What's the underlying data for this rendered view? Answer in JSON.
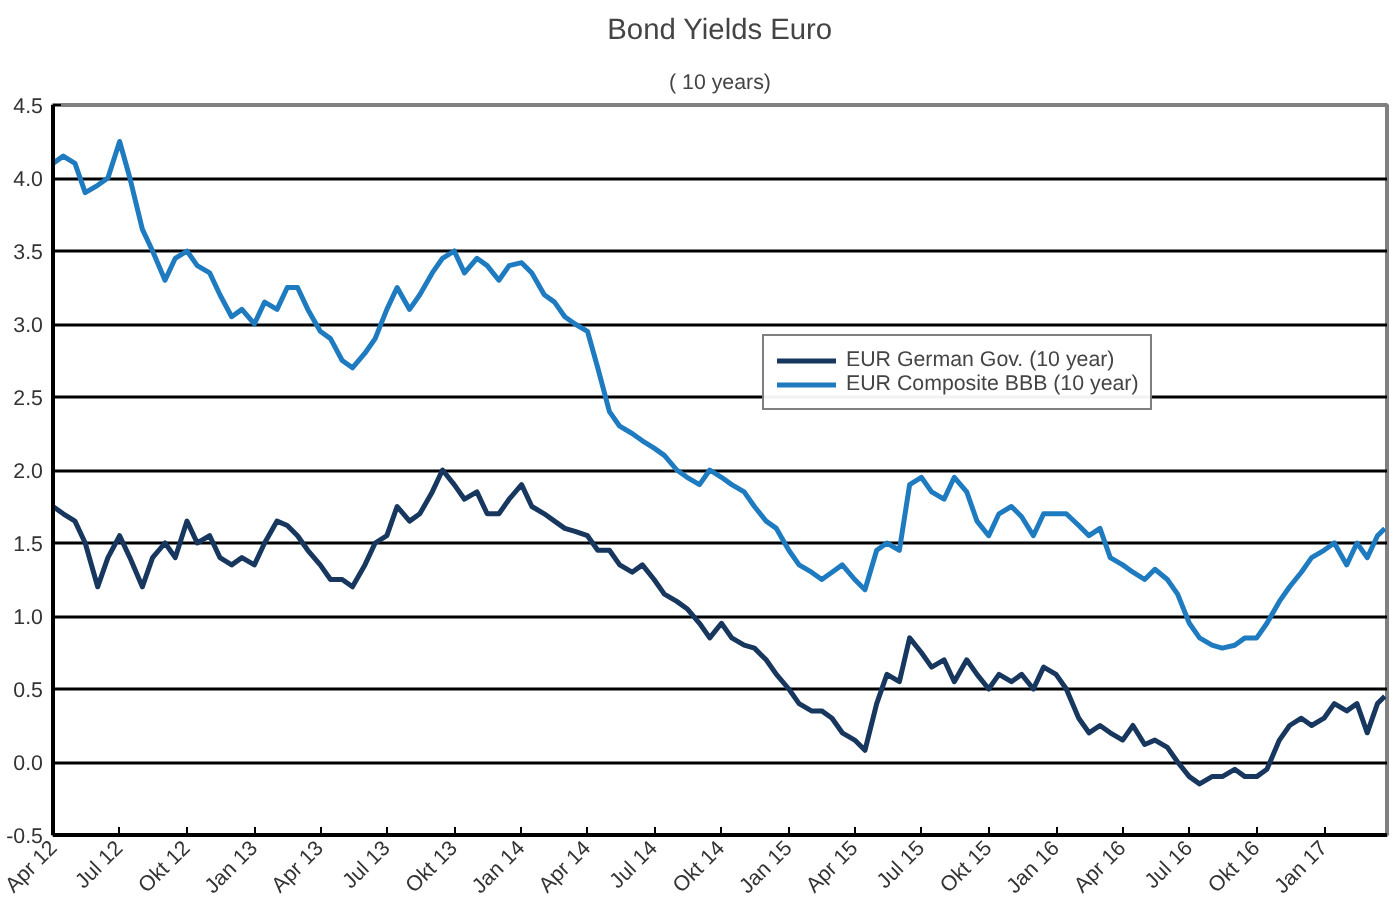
{
  "chart_data": {
    "type": "line",
    "title": "Bond Yields Euro",
    "subtitle": "( 10 years)",
    "x": [
      "2012-04-01",
      "2012-04-15",
      "2012-05-01",
      "2012-05-15",
      "2012-06-01",
      "2012-06-15",
      "2012-07-01",
      "2012-07-15",
      "2012-08-01",
      "2012-08-15",
      "2012-09-01",
      "2012-09-15",
      "2012-10-01",
      "2012-10-15",
      "2012-11-01",
      "2012-11-15",
      "2012-12-01",
      "2012-12-15",
      "2013-01-01",
      "2013-01-15",
      "2013-02-01",
      "2013-02-15",
      "2013-03-01",
      "2013-03-15",
      "2013-04-01",
      "2013-04-15",
      "2013-05-01",
      "2013-05-15",
      "2013-06-01",
      "2013-06-15",
      "2013-07-01",
      "2013-07-15",
      "2013-08-01",
      "2013-08-15",
      "2013-09-01",
      "2013-09-15",
      "2013-10-01",
      "2013-10-15",
      "2013-11-01",
      "2013-11-15",
      "2013-12-01",
      "2013-12-15",
      "2014-01-01",
      "2014-01-15",
      "2014-02-01",
      "2014-02-15",
      "2014-03-01",
      "2014-03-15",
      "2014-04-01",
      "2014-04-15",
      "2014-05-01",
      "2014-05-15",
      "2014-06-01",
      "2014-06-15",
      "2014-07-01",
      "2014-07-15",
      "2014-08-01",
      "2014-08-15",
      "2014-09-01",
      "2014-09-15",
      "2014-10-01",
      "2014-10-15",
      "2014-11-01",
      "2014-11-15",
      "2014-12-01",
      "2014-12-15",
      "2015-01-01",
      "2015-01-15",
      "2015-02-01",
      "2015-02-15",
      "2015-03-01",
      "2015-03-15",
      "2015-04-01",
      "2015-04-15",
      "2015-05-01",
      "2015-05-15",
      "2015-06-01",
      "2015-06-15",
      "2015-07-01",
      "2015-07-15",
      "2015-08-01",
      "2015-08-15",
      "2015-09-01",
      "2015-09-15",
      "2015-10-01",
      "2015-10-15",
      "2015-11-01",
      "2015-11-15",
      "2015-12-01",
      "2015-12-15",
      "2016-01-01",
      "2016-01-15",
      "2016-02-01",
      "2016-02-15",
      "2016-03-01",
      "2016-03-15",
      "2016-04-01",
      "2016-04-15",
      "2016-05-01",
      "2016-05-15",
      "2016-06-01",
      "2016-06-15",
      "2016-07-01",
      "2016-07-15",
      "2016-08-01",
      "2016-08-15",
      "2016-09-01",
      "2016-09-15",
      "2016-10-01",
      "2016-10-15",
      "2016-11-01",
      "2016-11-15",
      "2016-12-01",
      "2016-12-15",
      "2017-01-01",
      "2017-01-15",
      "2017-02-01",
      "2017-02-15",
      "2017-03-01",
      "2017-03-15",
      "2017-03-25"
    ],
    "series": [
      {
        "name": "EUR German Gov. (10 year)",
        "color": "#17375e",
        "values": [
          1.75,
          1.7,
          1.65,
          1.5,
          1.2,
          1.4,
          1.55,
          1.4,
          1.2,
          1.4,
          1.5,
          1.4,
          1.65,
          1.5,
          1.55,
          1.4,
          1.35,
          1.4,
          1.35,
          1.5,
          1.65,
          1.62,
          1.55,
          1.45,
          1.35,
          1.25,
          1.25,
          1.2,
          1.35,
          1.5,
          1.55,
          1.75,
          1.65,
          1.7,
          1.85,
          2.0,
          1.9,
          1.8,
          1.85,
          1.7,
          1.7,
          1.8,
          1.9,
          1.75,
          1.7,
          1.65,
          1.6,
          1.58,
          1.55,
          1.45,
          1.45,
          1.35,
          1.3,
          1.35,
          1.25,
          1.15,
          1.1,
          1.05,
          0.95,
          0.85,
          0.95,
          0.85,
          0.8,
          0.78,
          0.7,
          0.6,
          0.5,
          0.4,
          0.35,
          0.35,
          0.3,
          0.2,
          0.15,
          0.08,
          0.4,
          0.6,
          0.55,
          0.85,
          0.75,
          0.65,
          0.7,
          0.55,
          0.7,
          0.6,
          0.5,
          0.6,
          0.55,
          0.6,
          0.5,
          0.65,
          0.6,
          0.5,
          0.3,
          0.2,
          0.25,
          0.2,
          0.15,
          0.25,
          0.12,
          0.15,
          0.1,
          0.0,
          -0.1,
          -0.15,
          -0.1,
          -0.1,
          -0.05,
          -0.1,
          -0.1,
          -0.05,
          0.15,
          0.25,
          0.3,
          0.25,
          0.3,
          0.4,
          0.35,
          0.4,
          0.2,
          0.4,
          0.45
        ]
      },
      {
        "name": "EUR Composite BBB (10 year)",
        "color": "#1f7bc0",
        "values": [
          4.1,
          4.15,
          4.1,
          3.9,
          3.95,
          4.0,
          4.25,
          4.0,
          3.65,
          3.5,
          3.3,
          3.45,
          3.5,
          3.4,
          3.35,
          3.2,
          3.05,
          3.1,
          3.0,
          3.15,
          3.1,
          3.25,
          3.25,
          3.1,
          2.95,
          2.9,
          2.75,
          2.7,
          2.8,
          2.9,
          3.1,
          3.25,
          3.1,
          3.2,
          3.35,
          3.45,
          3.5,
          3.35,
          3.45,
          3.4,
          3.3,
          3.4,
          3.42,
          3.35,
          3.2,
          3.15,
          3.05,
          3.0,
          2.95,
          2.7,
          2.4,
          2.3,
          2.25,
          2.2,
          2.15,
          2.1,
          2.0,
          1.95,
          1.9,
          2.0,
          1.95,
          1.9,
          1.85,
          1.75,
          1.65,
          1.6,
          1.45,
          1.35,
          1.3,
          1.25,
          1.3,
          1.35,
          1.25,
          1.18,
          1.45,
          1.5,
          1.45,
          1.9,
          1.95,
          1.85,
          1.8,
          1.95,
          1.85,
          1.65,
          1.55,
          1.7,
          1.75,
          1.68,
          1.55,
          1.7,
          1.7,
          1.7,
          1.62,
          1.55,
          1.6,
          1.4,
          1.35,
          1.3,
          1.25,
          1.32,
          1.25,
          1.15,
          0.95,
          0.85,
          0.8,
          0.78,
          0.8,
          0.85,
          0.85,
          0.95,
          1.1,
          1.2,
          1.3,
          1.4,
          1.45,
          1.5,
          1.35,
          1.5,
          1.4,
          1.55,
          1.6
        ]
      }
    ],
    "xlim": [
      "2012-04-01",
      "2017-03-28"
    ],
    "xticks": [
      {
        "value": "2012-04-01",
        "label": "Apr 12"
      },
      {
        "value": "2012-07-01",
        "label": "Jul 12"
      },
      {
        "value": "2012-10-01",
        "label": "Okt 12"
      },
      {
        "value": "2013-01-01",
        "label": "Jan 13"
      },
      {
        "value": "2013-04-01",
        "label": "Apr 13"
      },
      {
        "value": "2013-07-01",
        "label": "Jul 13"
      },
      {
        "value": "2013-10-01",
        "label": "Okt 13"
      },
      {
        "value": "2014-01-01",
        "label": "Jan 14"
      },
      {
        "value": "2014-04-01",
        "label": "Apr 14"
      },
      {
        "value": "2014-07-01",
        "label": "Jul 14"
      },
      {
        "value": "2014-10-01",
        "label": "Okt 14"
      },
      {
        "value": "2015-01-01",
        "label": "Jan 15"
      },
      {
        "value": "2015-04-01",
        "label": "Apr 15"
      },
      {
        "value": "2015-07-01",
        "label": "Jul 15"
      },
      {
        "value": "2015-10-01",
        "label": "Okt 15"
      },
      {
        "value": "2016-01-01",
        "label": "Jan 16"
      },
      {
        "value": "2016-04-01",
        "label": "Apr 16"
      },
      {
        "value": "2016-07-01",
        "label": "Jul 16"
      },
      {
        "value": "2016-10-01",
        "label": "Okt 16"
      },
      {
        "value": "2017-01-01",
        "label": "Jan 17"
      }
    ],
    "ylim": [
      -0.5,
      4.5
    ],
    "yticks": [
      {
        "value": -0.5,
        "label": "-0.5"
      },
      {
        "value": 0,
        "label": "0.0"
      },
      {
        "value": 0.5,
        "label": "0.5"
      },
      {
        "value": 1,
        "label": "1.0"
      },
      {
        "value": 1.5,
        "label": "1.5"
      },
      {
        "value": 2,
        "label": "2.0"
      },
      {
        "value": 2.5,
        "label": "2.5"
      },
      {
        "value": 3,
        "label": "3.0"
      },
      {
        "value": 3.5,
        "label": "3.5"
      },
      {
        "value": 4,
        "label": "4.0"
      },
      {
        "value": 4.5,
        "label": "4.5"
      }
    ],
    "grid": "y",
    "legend": "right",
    "marker": "none",
    "line_style": "solid"
  }
}
